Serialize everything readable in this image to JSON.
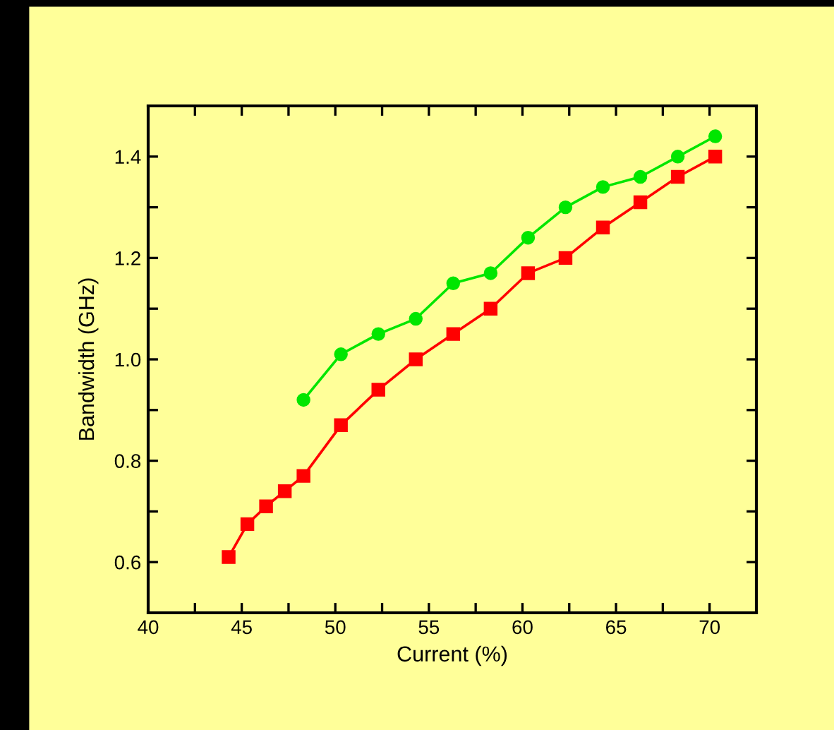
{
  "chart_data": {
    "type": "line",
    "xlabel": "Current (%)",
    "ylabel": "Bandwidth (GHz)",
    "xlim": [
      40,
      72.5
    ],
    "ylim": [
      0.5,
      1.5
    ],
    "xticks": [
      40,
      {
        "value": 42.5,
        "label": null
      },
      45,
      {
        "value": 47.5,
        "label": null
      },
      50,
      {
        "value": 52.5,
        "label": null
      },
      55,
      {
        "value": 57.5,
        "label": null
      },
      60,
      {
        "value": 62.5,
        "label": null
      },
      65,
      {
        "value": 67.5,
        "label": null
      },
      70
    ],
    "yticks": [
      {
        "value": 0.5,
        "label": null
      },
      0.6,
      {
        "value": 0.7,
        "label": null
      },
      0.8,
      {
        "value": 0.9,
        "label": null
      },
      {
        "value": 1.0,
        "label": "1.0"
      },
      {
        "value": 1.1,
        "label": null
      },
      1.2,
      {
        "value": 1.3,
        "label": null
      },
      1.4,
      {
        "value": 1.5,
        "label": null
      }
    ],
    "grid": false,
    "line_style": "solid",
    "series": [
      {
        "color": "#00e600",
        "marker": "circle",
        "x": [
          48.3,
          50.3,
          52.3,
          54.3,
          56.3,
          58.3,
          60.3,
          62.3,
          64.3,
          66.3,
          68.3,
          70.3
        ],
        "values": [
          0.92,
          1.01,
          1.05,
          1.08,
          1.15,
          1.17,
          1.24,
          1.3,
          1.34,
          1.36,
          1.4,
          1.44
        ]
      },
      {
        "color": "#ff0000",
        "marker": "square",
        "x": [
          44.3,
          45.3,
          46.3,
          47.3,
          48.3,
          50.3,
          52.3,
          54.3,
          56.3,
          58.3,
          60.3,
          62.3,
          64.3,
          66.3,
          68.3,
          70.3
        ],
        "values": [
          0.61,
          0.675,
          0.71,
          0.74,
          0.77,
          0.87,
          0.94,
          1.0,
          1.05,
          1.1,
          1.17,
          1.2,
          1.26,
          1.31,
          1.36,
          1.4
        ]
      }
    ]
  }
}
